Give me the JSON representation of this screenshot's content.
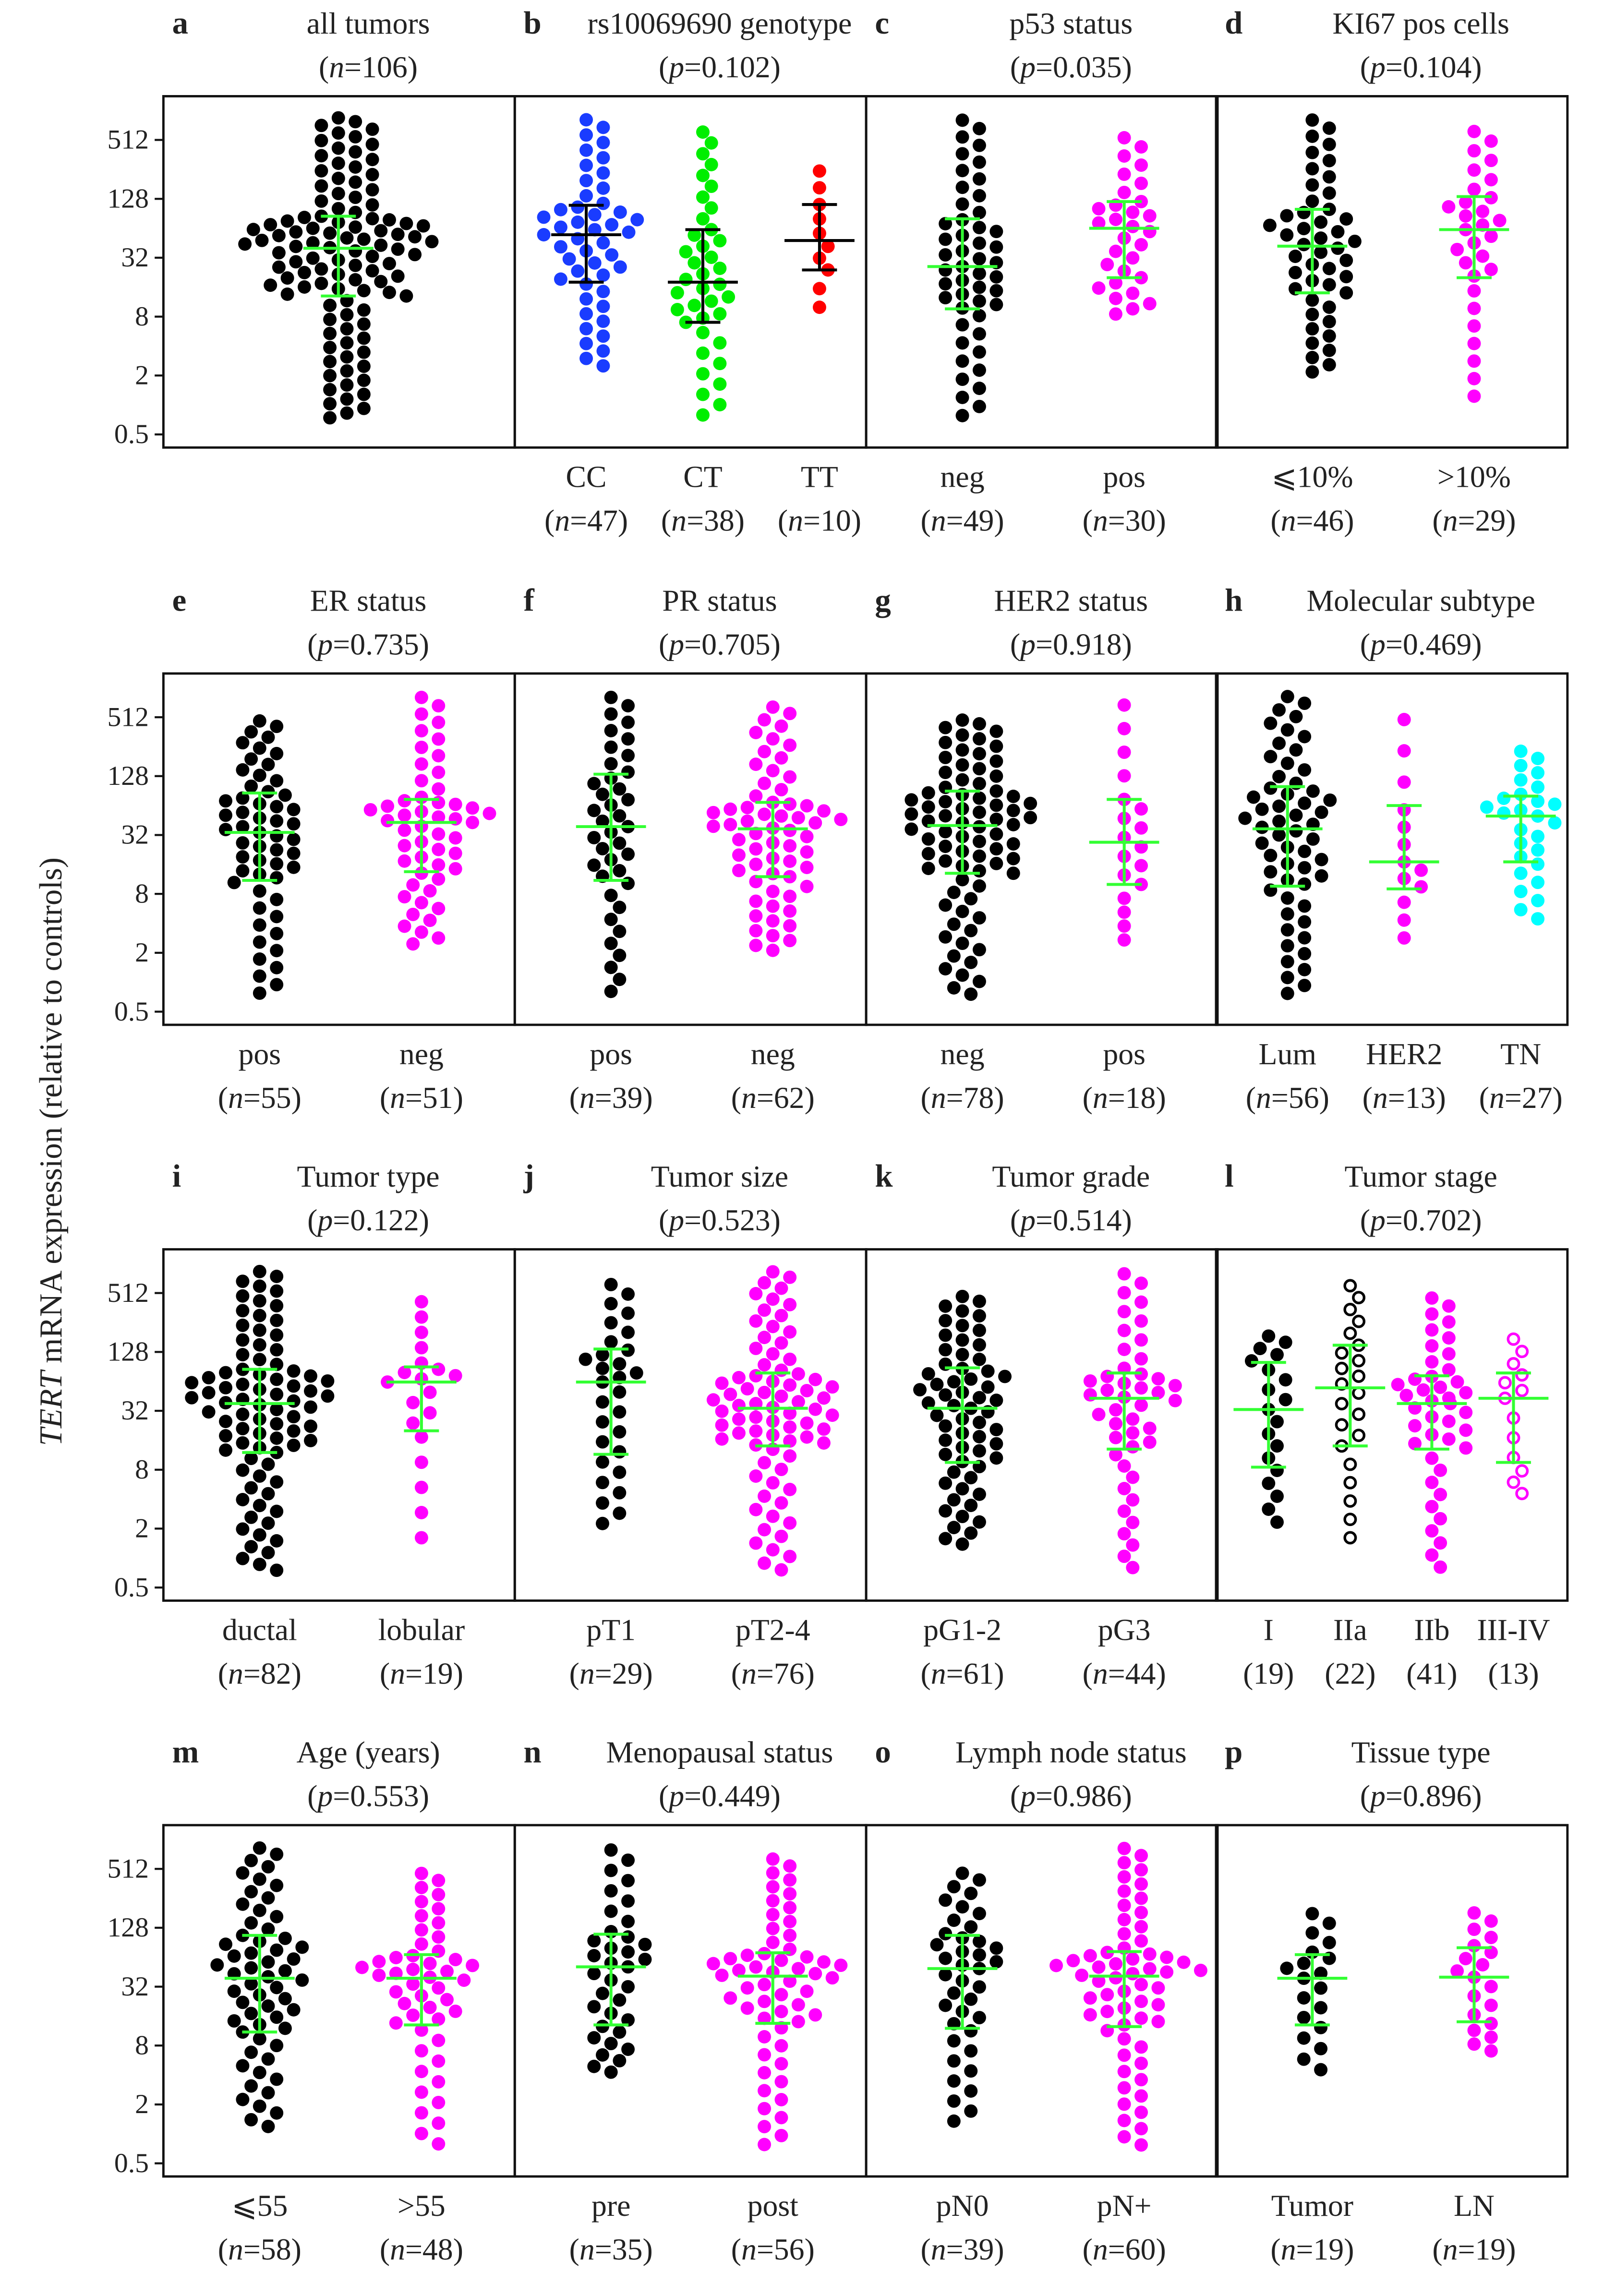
{
  "chart_data": {
    "type": "scatter",
    "subtype": "beeswarm",
    "ylabel_italic": "TERT",
    "ylabel": " mRNA expression (relative to controls)",
    "yscale": "log2",
    "yticks": [
      0.5,
      2,
      8,
      32,
      128,
      512
    ],
    "ytick_labels": [
      "0.5",
      "2",
      "8",
      "32",
      "128",
      "512"
    ],
    "ylim": [
      0.35,
      1100
    ],
    "colors": {
      "black": "#000000",
      "blue": "#1a3cff",
      "green": "#00ee00",
      "red": "#ff0000",
      "magenta": "#ff00ff",
      "cyan": "#00ffff",
      "errorbar": "#33ff33",
      "errorbar_b": "#000000"
    },
    "panels": [
      {
        "letter": "a",
        "title": "all tumors",
        "stat_var": "n",
        "stat_value": "106",
        "errorbar_color": "#33ff33",
        "groups": [
          {
            "label": "",
            "count": "",
            "n": 106,
            "color": "#000000",
            "open": false,
            "median": 40,
            "q1": 13,
            "q3": 85,
            "min": 0.7,
            "max": 900
          }
        ]
      },
      {
        "letter": "b",
        "title": "rs10069690 genotype",
        "stat_var": "p",
        "stat_value": "0.102",
        "errorbar_color": "#000000",
        "groups": [
          {
            "label": "CC",
            "count": "47",
            "n": 47,
            "color": "#1a3cff",
            "open": false,
            "median": 55,
            "q1": 18,
            "q3": 110,
            "min": 2.3,
            "max": 900
          },
          {
            "label": "CT",
            "count": "38",
            "n": 38,
            "color": "#00ee00",
            "open": false,
            "median": 18,
            "q1": 7,
            "q3": 62,
            "min": 0.7,
            "max": 700
          },
          {
            "label": "TT",
            "count": "10",
            "n": 10,
            "color": "#ff0000",
            "open": false,
            "median": 48,
            "q1": 24,
            "q3": 112,
            "min": 8,
            "max": 300
          }
        ]
      },
      {
        "letter": "c",
        "title": "p53 status",
        "stat_var": "p",
        "stat_value": "0.035",
        "errorbar_color": "#33ff33",
        "groups": [
          {
            "label": "neg",
            "count": "49",
            "n": 49,
            "color": "#000000",
            "open": false,
            "median": 26,
            "q1": 9.6,
            "q3": 80,
            "min": 0.7,
            "max": 900
          },
          {
            "label": "pos",
            "count": "30",
            "n": 30,
            "color": "#ff00ff",
            "open": false,
            "median": 64,
            "q1": 20,
            "q3": 120,
            "min": 8,
            "max": 600
          }
        ]
      },
      {
        "letter": "d",
        "title": "KI67 pos cells",
        "stat_var": "p",
        "stat_value": "0.104",
        "errorbar_color": "#33ff33",
        "groups": [
          {
            "label": "⩽10%",
            "count": "46",
            "n": 46,
            "color": "#000000",
            "open": false,
            "median": 42,
            "q1": 14,
            "q3": 100,
            "min": 2,
            "max": 900
          },
          {
            "label": ">10%",
            "count": "29",
            "n": 29,
            "color": "#ff00ff",
            "open": false,
            "median": 62,
            "q1": 20,
            "q3": 135,
            "min": 1,
            "max": 700
          }
        ]
      },
      {
        "letter": "e",
        "title": "ER status",
        "stat_var": "p",
        "stat_value": "0.735",
        "errorbar_color": "#33ff33",
        "groups": [
          {
            "label": "pos",
            "count": "55",
            "n": 55,
            "color": "#000000",
            "open": false,
            "median": 34,
            "q1": 11,
            "q3": 86,
            "min": 0.7,
            "max": 500
          },
          {
            "label": "neg",
            "count": "51",
            "n": 51,
            "color": "#ff00ff",
            "open": false,
            "median": 43,
            "q1": 13.5,
            "q3": 74,
            "min": 2.3,
            "max": 900
          }
        ]
      },
      {
        "letter": "f",
        "title": "PR status",
        "stat_var": "p",
        "stat_value": "0.705",
        "errorbar_color": "#33ff33",
        "groups": [
          {
            "label": "pos",
            "count": "39",
            "n": 39,
            "color": "#000000",
            "open": false,
            "median": 39,
            "q1": 11,
            "q3": 134,
            "min": 0.7,
            "max": 900
          },
          {
            "label": "neg",
            "count": "62",
            "n": 62,
            "color": "#ff00ff",
            "open": false,
            "median": 37,
            "q1": 12,
            "q3": 69,
            "min": 2,
            "max": 700
          }
        ]
      },
      {
        "letter": "g",
        "title": "HER2 status",
        "stat_var": "p",
        "stat_value": "0.918",
        "errorbar_color": "#33ff33",
        "groups": [
          {
            "label": "neg",
            "count": "78",
            "n": 78,
            "color": "#000000",
            "open": false,
            "median": 40,
            "q1": 13,
            "q3": 90,
            "min": 0.7,
            "max": 500
          },
          {
            "label": "pos",
            "count": "18",
            "n": 18,
            "color": "#ff00ff",
            "open": false,
            "median": 27,
            "q1": 10,
            "q3": 74,
            "min": 2.3,
            "max": 900
          }
        ]
      },
      {
        "letter": "h",
        "title": "Molecular subtype",
        "stat_var": "p",
        "stat_value": "0.469",
        "errorbar_color": "#33ff33",
        "groups": [
          {
            "label": "Lum",
            "count": "56",
            "n": 56,
            "color": "#000000",
            "open": false,
            "median": 37,
            "q1": 9.6,
            "q3": 100,
            "min": 0.7,
            "max": 900
          },
          {
            "label": "HER2",
            "count": "13",
            "n": 13,
            "color": "#ff00ff",
            "open": false,
            "median": 17,
            "q1": 9,
            "q3": 64,
            "min": 2.3,
            "max": 700
          },
          {
            "label": "TN",
            "count": "27",
            "n": 27,
            "color": "#00ffff",
            "open": false,
            "median": 50,
            "q1": 17,
            "q3": 80,
            "min": 4,
            "max": 250
          }
        ]
      },
      {
        "letter": "i",
        "title": "Tumor type",
        "stat_var": "p",
        "stat_value": "0.122",
        "errorbar_color": "#33ff33",
        "groups": [
          {
            "label": "ductal",
            "count": "82",
            "n": 82,
            "color": "#000000",
            "open": false,
            "median": 38,
            "q1": 12,
            "q3": 85,
            "min": 0.7,
            "max": 900
          },
          {
            "label": "lobular",
            "count": "19",
            "n": 19,
            "color": "#ff00ff",
            "open": false,
            "median": 63,
            "q1": 20,
            "q3": 90,
            "min": 1.2,
            "max": 500
          }
        ]
      },
      {
        "letter": "j",
        "title": "Tumor size",
        "stat_var": "p",
        "stat_value": "0.523",
        "errorbar_color": "#33ff33",
        "groups": [
          {
            "label": "pT1",
            "count": "29",
            "n": 29,
            "color": "#000000",
            "open": false,
            "median": 63,
            "q1": 11.5,
            "q3": 137,
            "min": 2,
            "max": 700
          },
          {
            "label": "pT2-4",
            "count": "76",
            "n": 76,
            "color": "#ff00ff",
            "open": false,
            "median": 34,
            "q1": 14,
            "q3": 78,
            "min": 0.7,
            "max": 900
          }
        ]
      },
      {
        "letter": "k",
        "title": "Tumor grade",
        "stat_var": "p",
        "stat_value": "0.514",
        "errorbar_color": "#33ff33",
        "groups": [
          {
            "label": "pG1-2",
            "count": "61",
            "n": 61,
            "color": "#000000",
            "open": false,
            "median": 34,
            "q1": 9.5,
            "q3": 88,
            "min": 1.3,
            "max": 500
          },
          {
            "label": "pG3",
            "count": "44",
            "n": 44,
            "color": "#ff00ff",
            "open": false,
            "median": 43,
            "q1": 13,
            "q3": 78,
            "min": 0.7,
            "max": 900
          }
        ]
      },
      {
        "letter": "l",
        "title": "Tumor stage",
        "stat_var": "p",
        "stat_value": "0.702",
        "errorbar_color": "#33ff33",
        "count_plain": true,
        "groups": [
          {
            "label": "I",
            "count": "19",
            "n": 19,
            "color": "#000000",
            "open": false,
            "median": 33,
            "q1": 8.5,
            "q3": 100,
            "min": 2,
            "max": 200
          },
          {
            "label": "IIa",
            "count": "22",
            "n": 22,
            "color": "#000000",
            "open": true,
            "median": 55,
            "q1": 14,
            "q3": 150,
            "min": 1.3,
            "max": 700
          },
          {
            "label": "IIb",
            "count": "41",
            "n": 41,
            "color": "#ff00ff",
            "open": false,
            "median": 38,
            "q1": 13,
            "q3": 73,
            "min": 0.7,
            "max": 500
          },
          {
            "label": "III-IV",
            "count": "13",
            "n": 13,
            "color": "#ff00ff",
            "open": true,
            "median": 43,
            "q1": 9.5,
            "q3": 78,
            "min": 4,
            "max": 200
          }
        ]
      },
      {
        "letter": "m",
        "title": "Age (years)",
        "stat_var": "p",
        "stat_value": "0.553",
        "errorbar_color": "#33ff33",
        "groups": [
          {
            "label": "⩽55",
            "count": "58",
            "n": 58,
            "color": "#000000",
            "open": false,
            "median": 39,
            "q1": 11,
            "q3": 107,
            "min": 1.1,
            "max": 900
          },
          {
            "label": ">55",
            "count": "48",
            "n": 48,
            "color": "#ff00ff",
            "open": false,
            "median": 39,
            "q1": 13,
            "q3": 68,
            "min": 0.7,
            "max": 500
          }
        ]
      },
      {
        "letter": "n",
        "title": "Menopausal status",
        "stat_var": "p",
        "stat_value": "0.449",
        "errorbar_color": "#33ff33",
        "groups": [
          {
            "label": "pre",
            "count": "35",
            "n": 35,
            "color": "#000000",
            "open": false,
            "median": 51,
            "q1": 13,
            "q3": 110,
            "min": 4,
            "max": 900
          },
          {
            "label": "post",
            "count": "56",
            "n": 56,
            "color": "#ff00ff",
            "open": false,
            "median": 41,
            "q1": 13.5,
            "q3": 71,
            "min": 0.7,
            "max": 700
          }
        ]
      },
      {
        "letter": "o",
        "title": "Lymph node status",
        "stat_var": "p",
        "stat_value": "0.986",
        "errorbar_color": "#33ff33",
        "groups": [
          {
            "label": "pN0",
            "count": "39",
            "n": 39,
            "color": "#000000",
            "open": false,
            "median": 49,
            "q1": 12,
            "q3": 107,
            "min": 1.2,
            "max": 500
          },
          {
            "label": "pN+",
            "count": "60",
            "n": 60,
            "color": "#ff00ff",
            "open": false,
            "median": 41,
            "q1": 12.5,
            "q3": 73,
            "min": 0.7,
            "max": 900
          }
        ]
      },
      {
        "letter": "p",
        "title": "Tissue type",
        "stat_var": "p",
        "stat_value": "0.896",
        "errorbar_color": "#33ff33",
        "groups": [
          {
            "label": "Tumor",
            "count": "19",
            "n": 19,
            "color": "#000000",
            "open": false,
            "median": 39,
            "q1": 13,
            "q3": 68,
            "min": 4,
            "max": 200
          },
          {
            "label": "LN",
            "count": "19",
            "n": 19,
            "color": "#ff00ff",
            "open": false,
            "median": 40,
            "q1": 14,
            "q3": 80,
            "min": 6.5,
            "max": 200
          }
        ]
      }
    ]
  }
}
